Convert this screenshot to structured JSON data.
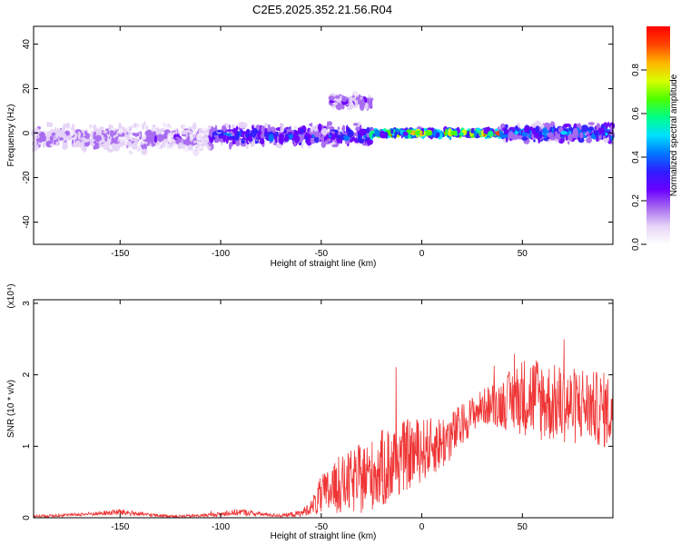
{
  "title": "C2E5.2025.352.21.56.R04",
  "colors": {
    "line": "#ef3535",
    "frame": "#000000",
    "colormap": [
      "#ffffff",
      "#e6d4f7",
      "#a86bf0",
      "#6a00ff",
      "#2f1cff",
      "#0077ff",
      "#00e1ff",
      "#00ff87",
      "#4cff00",
      "#d8ff00",
      "#ffb400",
      "#ff4400",
      "#ff0000"
    ]
  },
  "chart_data": [
    {
      "type": "heatmap",
      "title": "C2E5.2025.352.21.56.R04",
      "xlabel": "Height of straight line (km)",
      "ylabel": "Frequency (Hz)",
      "xlim": [
        -193,
        95
      ],
      "ylim": [
        -50,
        48
      ],
      "xticks": [
        -150,
        -100,
        -50,
        0,
        50
      ],
      "yticks": [
        -40,
        -20,
        0,
        20,
        40
      ],
      "colorbar": {
        "label": "Normalized spectral amplitude",
        "range": [
          0,
          1
        ],
        "ticks": [
          "0.0",
          "0.2",
          "0.4",
          "0.6",
          "0.8"
        ]
      },
      "features": [
        {
          "x_range": [
            -193,
            -105
          ],
          "freq_center": -2,
          "freq_halfwidth": 8,
          "peak_amplitude": 0.25
        },
        {
          "x_range": [
            -150,
            -105
          ],
          "freq_center": 0,
          "freq_halfwidth": 48,
          "peak_amplitude": 0.05
        },
        {
          "x_range": [
            -105,
            -25
          ],
          "freq_center": -1,
          "freq_halfwidth": 6,
          "peak_amplitude": 0.45
        },
        {
          "x_range": [
            -45,
            -25
          ],
          "freq_center": 14,
          "freq_halfwidth": 4,
          "peak_amplitude": 0.3
        },
        {
          "x_range": [
            -25,
            40
          ],
          "freq_center": 0,
          "freq_halfwidth": 2,
          "peak_amplitude": 0.95
        },
        {
          "x_range": [
            40,
            95
          ],
          "freq_center": 0,
          "freq_halfwidth": 5,
          "peak_amplitude": 0.55
        }
      ]
    },
    {
      "type": "line",
      "xlabel": "Height of straight line (km)",
      "ylabel": "SNR (10 * v/v)",
      "multiplier_label": "(x10⁴)",
      "xlim": [
        -193,
        95
      ],
      "ylim": [
        0,
        3.05
      ],
      "xticks": [
        -150,
        -100,
        -50,
        0,
        50
      ],
      "yticks": [
        0,
        1,
        2,
        3
      ],
      "series": [
        {
          "x": [
            -193,
            -175,
            -160,
            -150,
            -140,
            -130,
            -120,
            -110,
            -100,
            -90,
            -80,
            -70,
            -60,
            -55,
            -50,
            -45,
            -40,
            -35,
            -30,
            -25,
            -20,
            -15,
            -10,
            -5,
            0,
            5,
            10,
            15,
            20,
            25,
            30,
            35,
            40,
            45,
            50,
            55,
            60,
            65,
            70,
            75,
            80,
            85,
            90,
            95
          ],
          "mean": [
            0.02,
            0.04,
            0.06,
            0.08,
            0.05,
            0.03,
            0.02,
            0.03,
            0.05,
            0.08,
            0.05,
            0.03,
            0.06,
            0.15,
            0.3,
            0.38,
            0.45,
            0.5,
            0.55,
            0.6,
            0.68,
            0.75,
            0.85,
            0.9,
            0.95,
            1.0,
            1.05,
            1.15,
            1.3,
            1.45,
            1.55,
            1.58,
            1.6,
            1.65,
            1.7,
            1.7,
            1.65,
            1.6,
            1.6,
            1.55,
            1.6,
            1.55,
            1.5,
            1.5
          ],
          "spread": [
            0.02,
            0.02,
            0.03,
            0.05,
            0.03,
            0.02,
            0.02,
            0.02,
            0.03,
            0.05,
            0.03,
            0.02,
            0.05,
            0.1,
            0.3,
            0.35,
            0.4,
            0.45,
            0.5,
            0.5,
            0.55,
            0.6,
            0.5,
            0.5,
            0.45,
            0.4,
            0.4,
            0.35,
            0.3,
            0.25,
            0.25,
            0.3,
            0.35,
            0.45,
            0.55,
            0.6,
            0.6,
            0.55,
            0.55,
            0.55,
            0.55,
            0.5,
            0.55,
            0.5
          ]
        }
      ]
    }
  ]
}
